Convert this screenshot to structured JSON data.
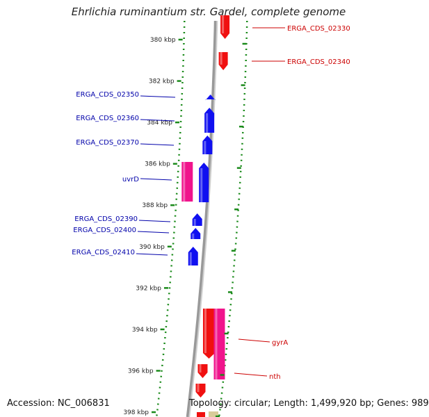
{
  "title": "Ehrlichia ruminantium str. Gardel, complete genome",
  "footer": {
    "accession": "Accession: NC_006831",
    "summary": "Topology: circular; Length: 1,499,920 bp; Genes: 989"
  },
  "colors": {
    "forward_cds": "#f01010",
    "reverse_cds": "#1010f0",
    "forward_gene": "#f0148c",
    "reverse_gene": "#f0148c",
    "backbone": "#888888",
    "tick_dots": "#1a8a1a",
    "label_forward": "#cc0000",
    "label_reverse": "#0000aa",
    "kbp_label": "#222222"
  },
  "diagram": {
    "kbp_range": [
      379,
      399
    ],
    "kbp_ticks": [
      "380 kbp",
      "382 kbp",
      "384 kbp",
      "386 kbp",
      "388 kbp",
      "390 kbp",
      "392 kbp",
      "394 kbp",
      "396 kbp",
      "398 kbp"
    ],
    "forward_labels": [
      {
        "text": "ERGA_CDS_02330",
        "kbp": 380.0
      },
      {
        "text": "ERGA_CDS_02340",
        "kbp": 381.0
      },
      {
        "text": "gyrA",
        "kbp": 394.6
      },
      {
        "text": "nth",
        "kbp": 395.9
      }
    ],
    "reverse_labels": [
      {
        "text": "ERGA_CDS_02350",
        "kbp": 382.7
      },
      {
        "text": "ERGA_CDS_02360",
        "kbp": 383.6
      },
      {
        "text": "ERGA_CDS_02370",
        "kbp": 384.6
      },
      {
        "text": "uvrD",
        "kbp": 386.7
      },
      {
        "text": "ERGA_CDS_02390",
        "kbp": 388.5
      },
      {
        "text": "ERGA_CDS_02400",
        "kbp": 389.2
      },
      {
        "text": "ERGA_CDS_02410",
        "kbp": 390.2
      }
    ]
  }
}
